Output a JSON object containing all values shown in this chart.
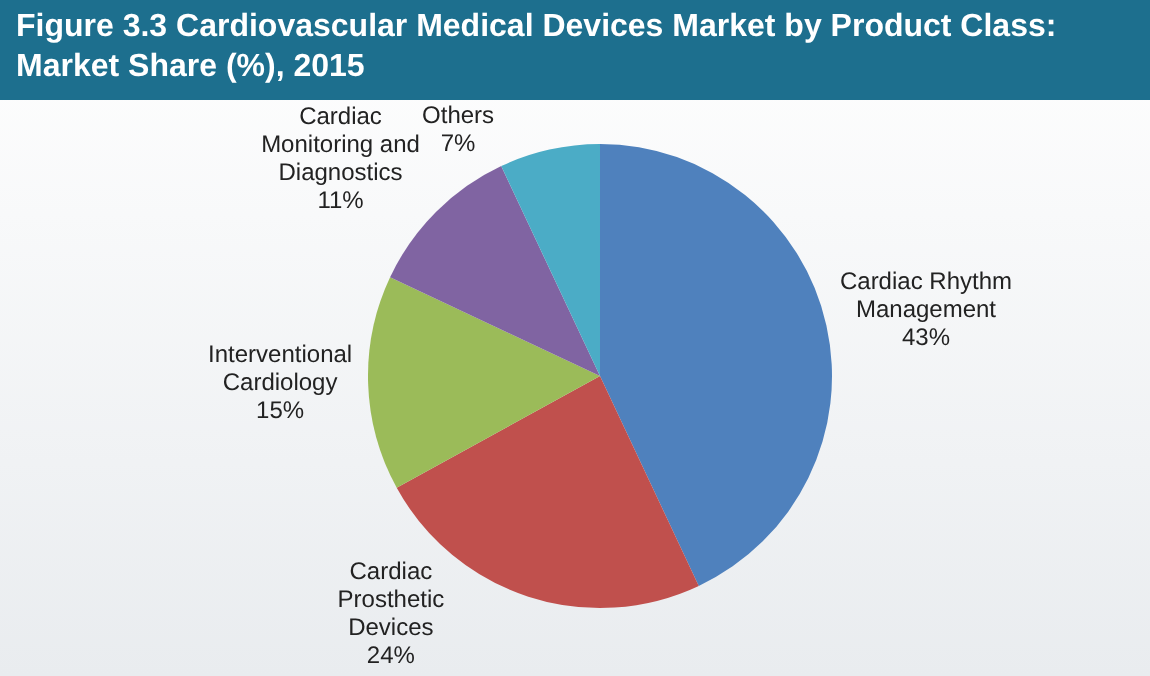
{
  "chart_data": {
    "type": "pie",
    "title": "Figure 3.3 Cardiovascular Medical Devices Market by Product Class: Market Share (%), 2015",
    "categories": [
      "Cardiac Rhythm Management",
      "Cardiac Prosthetic Devices",
      "Interventional Cardiology",
      "Cardiac Monitoring and Diagnostics",
      "Others"
    ],
    "values": [
      43,
      24,
      15,
      11,
      7
    ],
    "colors": [
      "#4f81bd",
      "#c0504d",
      "#9bbb59",
      "#8064a2",
      "#4bacc6"
    ],
    "value_labels": [
      "43%",
      "24%",
      "15%",
      "11%",
      "7%"
    ]
  }
}
